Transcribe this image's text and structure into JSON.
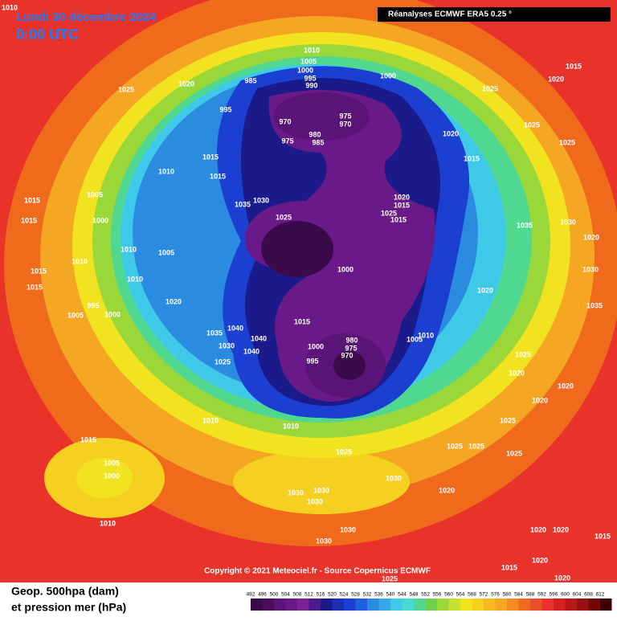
{
  "header": {
    "date": "Lundi 30 décembre 2024",
    "time": "0:00 UTC",
    "source": "Réanalyses ECMWF ERA5 0.25 °"
  },
  "copyright": "Copyright © 2021 Meteociel.fr - Source Copernicus ECMWF",
  "legend": {
    "line1": "Geop. 500hpa (dam)",
    "line2": "et pression mer (hPa)",
    "scale": [
      492,
      496,
      500,
      504,
      508,
      512,
      516,
      520,
      524,
      528,
      532,
      536,
      540,
      544,
      548,
      552,
      556,
      560,
      564,
      568,
      572,
      576,
      580,
      584,
      588,
      592,
      596,
      600,
      604,
      608,
      612
    ],
    "colors": [
      "#3a0a4a",
      "#4a0d5e",
      "#5a1478",
      "#6a1a88",
      "#7a2296",
      "#4b1a8f",
      "#1a1a8a",
      "#1b2fb0",
      "#1b3fd1",
      "#2060e0",
      "#2a8be0",
      "#35a8ea",
      "#3fc9e8",
      "#4ad8d0",
      "#50d890",
      "#6bd04a",
      "#9ad83a",
      "#c8e030",
      "#f2e321",
      "#f5d020",
      "#f5b820",
      "#f5a623",
      "#f58a1e",
      "#f06a1c",
      "#e8502a",
      "#e8322a",
      "#d42020",
      "#b81818",
      "#981010",
      "#700808",
      "#3a0000"
    ]
  },
  "isobar_labels": [
    1010,
    1010,
    1005,
    1000,
    995,
    990,
    985,
    1000,
    1020,
    1025,
    995,
    975,
    970,
    970,
    980,
    975,
    985,
    1025,
    1020,
    1015,
    1025,
    1025,
    1020,
    1015,
    1015,
    1010,
    1015,
    1030,
    1035,
    1025,
    1020,
    1015,
    1025,
    1015,
    1005,
    1015,
    1015,
    1000,
    1010,
    1005,
    1010,
    1015,
    1010,
    1015,
    1000,
    1020,
    995,
    1005,
    1000,
    1015,
    1040,
    1035,
    1040,
    1030,
    1040,
    1025,
    1000,
    980,
    975,
    970,
    995,
    1010,
    1005,
    1020,
    1035,
    1030,
    1020,
    1030,
    1035,
    1025,
    1020,
    1020,
    1020,
    1025,
    1010,
    1010,
    1015,
    1025,
    1025,
    1025,
    1025,
    1005,
    1000,
    1030,
    1030,
    1030,
    1030,
    1020,
    1010,
    1030,
    1030,
    1020,
    1020,
    1015,
    1020,
    1020,
    1015,
    1025
  ]
}
